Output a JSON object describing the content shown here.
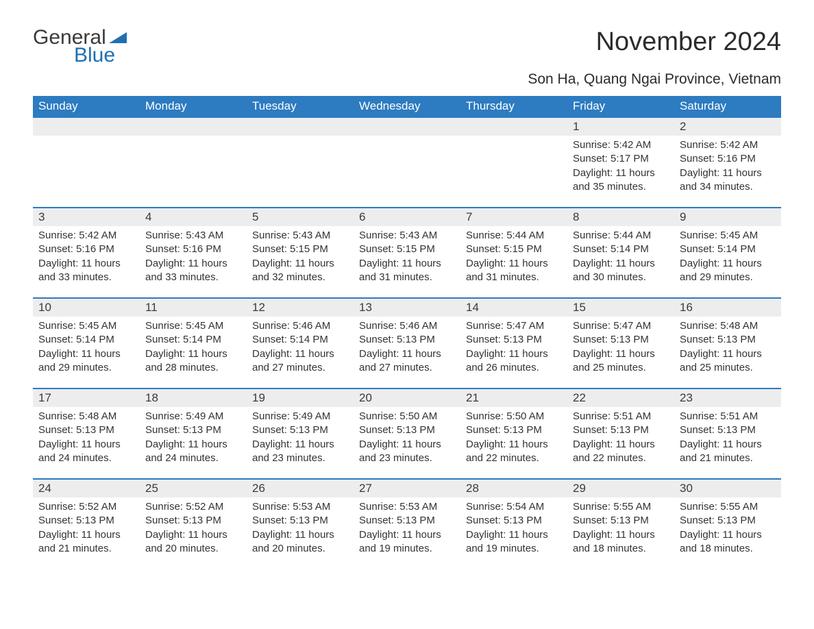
{
  "logo": {
    "word1": "General",
    "word2": "Blue"
  },
  "title": "November 2024",
  "subtitle": "Son Ha, Quang Ngai Province, Vietnam",
  "colors": {
    "header_bg": "#2d7bc0",
    "header_text": "#ffffff",
    "daynum_bg": "#ededed",
    "row_border": "#2d7bc0",
    "text": "#333333",
    "logo_accent": "#1f6fb2"
  },
  "day_headers": [
    "Sunday",
    "Monday",
    "Tuesday",
    "Wednesday",
    "Thursday",
    "Friday",
    "Saturday"
  ],
  "weeks": [
    [
      null,
      null,
      null,
      null,
      null,
      {
        "n": "1",
        "sunrise": "5:42 AM",
        "sunset": "5:17 PM",
        "daylight": "11 hours and 35 minutes."
      },
      {
        "n": "2",
        "sunrise": "5:42 AM",
        "sunset": "5:16 PM",
        "daylight": "11 hours and 34 minutes."
      }
    ],
    [
      {
        "n": "3",
        "sunrise": "5:42 AM",
        "sunset": "5:16 PM",
        "daylight": "11 hours and 33 minutes."
      },
      {
        "n": "4",
        "sunrise": "5:43 AM",
        "sunset": "5:16 PM",
        "daylight": "11 hours and 33 minutes."
      },
      {
        "n": "5",
        "sunrise": "5:43 AM",
        "sunset": "5:15 PM",
        "daylight": "11 hours and 32 minutes."
      },
      {
        "n": "6",
        "sunrise": "5:43 AM",
        "sunset": "5:15 PM",
        "daylight": "11 hours and 31 minutes."
      },
      {
        "n": "7",
        "sunrise": "5:44 AM",
        "sunset": "5:15 PM",
        "daylight": "11 hours and 31 minutes."
      },
      {
        "n": "8",
        "sunrise": "5:44 AM",
        "sunset": "5:14 PM",
        "daylight": "11 hours and 30 minutes."
      },
      {
        "n": "9",
        "sunrise": "5:45 AM",
        "sunset": "5:14 PM",
        "daylight": "11 hours and 29 minutes."
      }
    ],
    [
      {
        "n": "10",
        "sunrise": "5:45 AM",
        "sunset": "5:14 PM",
        "daylight": "11 hours and 29 minutes."
      },
      {
        "n": "11",
        "sunrise": "5:45 AM",
        "sunset": "5:14 PM",
        "daylight": "11 hours and 28 minutes."
      },
      {
        "n": "12",
        "sunrise": "5:46 AM",
        "sunset": "5:14 PM",
        "daylight": "11 hours and 27 minutes."
      },
      {
        "n": "13",
        "sunrise": "5:46 AM",
        "sunset": "5:13 PM",
        "daylight": "11 hours and 27 minutes."
      },
      {
        "n": "14",
        "sunrise": "5:47 AM",
        "sunset": "5:13 PM",
        "daylight": "11 hours and 26 minutes."
      },
      {
        "n": "15",
        "sunrise": "5:47 AM",
        "sunset": "5:13 PM",
        "daylight": "11 hours and 25 minutes."
      },
      {
        "n": "16",
        "sunrise": "5:48 AM",
        "sunset": "5:13 PM",
        "daylight": "11 hours and 25 minutes."
      }
    ],
    [
      {
        "n": "17",
        "sunrise": "5:48 AM",
        "sunset": "5:13 PM",
        "daylight": "11 hours and 24 minutes."
      },
      {
        "n": "18",
        "sunrise": "5:49 AM",
        "sunset": "5:13 PM",
        "daylight": "11 hours and 24 minutes."
      },
      {
        "n": "19",
        "sunrise": "5:49 AM",
        "sunset": "5:13 PM",
        "daylight": "11 hours and 23 minutes."
      },
      {
        "n": "20",
        "sunrise": "5:50 AM",
        "sunset": "5:13 PM",
        "daylight": "11 hours and 23 minutes."
      },
      {
        "n": "21",
        "sunrise": "5:50 AM",
        "sunset": "5:13 PM",
        "daylight": "11 hours and 22 minutes."
      },
      {
        "n": "22",
        "sunrise": "5:51 AM",
        "sunset": "5:13 PM",
        "daylight": "11 hours and 22 minutes."
      },
      {
        "n": "23",
        "sunrise": "5:51 AM",
        "sunset": "5:13 PM",
        "daylight": "11 hours and 21 minutes."
      }
    ],
    [
      {
        "n": "24",
        "sunrise": "5:52 AM",
        "sunset": "5:13 PM",
        "daylight": "11 hours and 21 minutes."
      },
      {
        "n": "25",
        "sunrise": "5:52 AM",
        "sunset": "5:13 PM",
        "daylight": "11 hours and 20 minutes."
      },
      {
        "n": "26",
        "sunrise": "5:53 AM",
        "sunset": "5:13 PM",
        "daylight": "11 hours and 20 minutes."
      },
      {
        "n": "27",
        "sunrise": "5:53 AM",
        "sunset": "5:13 PM",
        "daylight": "11 hours and 19 minutes."
      },
      {
        "n": "28",
        "sunrise": "5:54 AM",
        "sunset": "5:13 PM",
        "daylight": "11 hours and 19 minutes."
      },
      {
        "n": "29",
        "sunrise": "5:55 AM",
        "sunset": "5:13 PM",
        "daylight": "11 hours and 18 minutes."
      },
      {
        "n": "30",
        "sunrise": "5:55 AM",
        "sunset": "5:13 PM",
        "daylight": "11 hours and 18 minutes."
      }
    ]
  ],
  "labels": {
    "sunrise": "Sunrise:",
    "sunset": "Sunset:",
    "daylight": "Daylight:"
  }
}
